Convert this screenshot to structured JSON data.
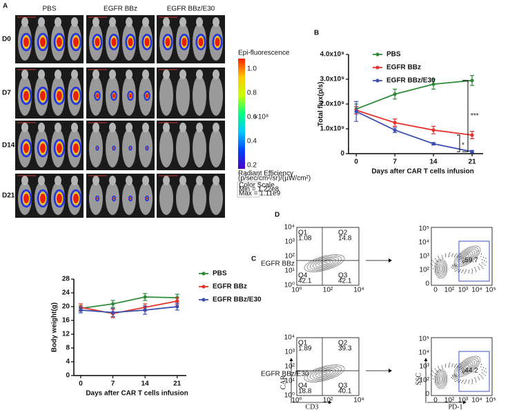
{
  "panels": {
    "a": {
      "label": "A",
      "columns": [
        "PBS",
        "EGFR BBz",
        "EGFR BBz/E30"
      ],
      "rows": [
        "D0",
        "D7",
        "D14",
        "D21"
      ],
      "scale_title": "Epi-fluorescence",
      "scale_unit": "×10⁸",
      "scale_ticks": [
        "1.0",
        "0.8",
        "0.6",
        "0.4",
        "0.2"
      ],
      "scale_caption": "Radiant Efficiency",
      "scale_units": "(p/sec/cm²/sr)/(µW/cm²)",
      "scale_minmax": [
        "Color Scale",
        "Min = 1.22e8",
        "Max = 1.11e9"
      ]
    },
    "d": {
      "label": "D",
      "plots": [
        {
          "name": "EGFR BBz",
          "quadrants": [
            [
              "Q1",
              1.08
            ],
            [
              "Q2",
              14.8
            ],
            [
              "Q4",
              42.1
            ],
            [
              "Q3",
              42.1
            ]
          ],
          "gate": 59.7
        },
        {
          "name": "EGFR BBz/E30",
          "quadrants": [
            [
              "Q1",
              1.89
            ],
            [
              "Q2",
              39.3
            ],
            [
              "Q4",
              18.8
            ],
            [
              "Q3",
              40.1
            ]
          ],
          "gate": 44.2
        }
      ],
      "left_yticks": [
        "10⁴",
        "10³",
        "10²",
        "10¹",
        "10⁰"
      ],
      "left_xticks": [
        "10⁰",
        "10²",
        "10⁴"
      ],
      "right_yticks": [
        "10⁵",
        "10⁴",
        "10³",
        "10²",
        "0"
      ],
      "right_xticks": [
        "0",
        "10²",
        "10³",
        "10⁴",
        "10⁵"
      ],
      "left_xlabel": "CD3",
      "left_ylabel": "CAR",
      "right_xlabel": "PD-1",
      "right_ylabel": "SSC"
    }
  },
  "chart_data": [
    {
      "type": "line",
      "panel_label": "B",
      "y_label": "Total flux(p/s)",
      "x_label": "Days after CAR T cells  infusion",
      "x": [
        0,
        7,
        14,
        21
      ],
      "xlim": [
        -1.4,
        23
      ],
      "xticks": [
        0,
        7,
        14,
        21
      ],
      "ylim": [
        0,
        4000000000
      ],
      "yticks": [
        0,
        {
          "value": 1000000000,
          "label": "1.0x10⁹"
        },
        {
          "value": 2000000000,
          "label": "2.0x10⁹"
        },
        {
          "value": 3000000000,
          "label": "3.0x10⁹"
        },
        {
          "value": 4000000000,
          "label": "4.0x10⁹"
        }
      ],
      "series": [
        {
          "name": "PBS",
          "color": "#2e8b3a",
          "values": [
            1800000000,
            2400000000,
            2800000000,
            2950000000
          ],
          "errors": [
            200000000,
            200000000,
            200000000,
            200000000
          ]
        },
        {
          "name": "EGFR BBz",
          "color": "#e8322a",
          "values": [
            1750000000,
            1250000000,
            950000000,
            750000000
          ],
          "errors": [
            150000000,
            150000000,
            150000000,
            150000000
          ]
        },
        {
          "name": "EGFR BBz/E30",
          "color": "#3a4fb0",
          "values": [
            1700000000,
            950000000,
            400000000,
            80000000
          ],
          "errors": [
            400000000,
            100000000,
            50000000,
            50000000
          ]
        }
      ],
      "annotations": [
        "***",
        "*"
      ]
    },
    {
      "type": "line",
      "panel_label": "C",
      "y_label": "Body weight(g)",
      "x_label": "Days after CAR T cells  infusion",
      "x": [
        0,
        7,
        14,
        21
      ],
      "xlim": [
        -1.5,
        23
      ],
      "xticks": [
        0,
        7,
        14,
        21
      ],
      "ylim": [
        0,
        28
      ],
      "yticks": [
        0,
        4,
        8,
        12,
        16,
        20,
        24,
        28
      ],
      "series": [
        {
          "name": "PBS",
          "color": "#2e8b3a",
          "values": [
            19.5,
            20.8,
            22.8,
            22.6
          ],
          "errors": [
            0.8,
            1,
            1,
            1
          ]
        },
        {
          "name": "EGFR BBz",
          "color": "#e8322a",
          "values": [
            19.8,
            18.0,
            19.8,
            21.6
          ],
          "errors": [
            1,
            1.2,
            1,
            1
          ]
        },
        {
          "name": "EGFR BBz/E30",
          "color": "#3a4fb0",
          "values": [
            19.0,
            18.3,
            19.0,
            20.0
          ],
          "errors": [
            0.8,
            1.2,
            1.2,
            1
          ]
        }
      ]
    }
  ]
}
